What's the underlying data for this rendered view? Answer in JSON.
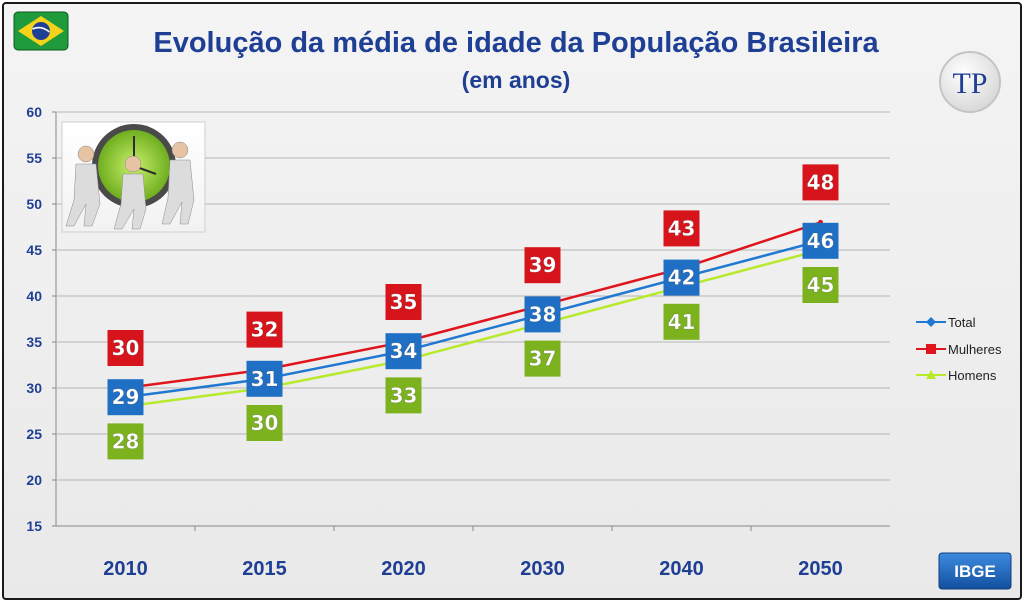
{
  "chart_data": {
    "type": "line",
    "title": "Evolução da média de idade da População Brasileira",
    "subtitle": "(em anos)",
    "categories": [
      "2010",
      "2015",
      "2020",
      "2030",
      "2040",
      "2050"
    ],
    "ylim": [
      15,
      60
    ],
    "yticks": [
      15,
      20,
      25,
      30,
      35,
      40,
      45,
      50,
      55,
      60
    ],
    "grid": true,
    "legend_position": "right",
    "series": [
      {
        "name": "Total",
        "values": [
          29,
          31,
          34,
          38,
          42,
          46
        ],
        "label_values": [
          "29",
          "31",
          "34",
          "38",
          "42",
          "46"
        ],
        "color": "#1f78d1",
        "box_color": "#1f6fc4",
        "marker": "diamond"
      },
      {
        "name": "Mulheres",
        "values": [
          30,
          32,
          35,
          39,
          43,
          48
        ],
        "label_values": [
          "30",
          "32",
          "35",
          "39",
          "43",
          "48"
        ],
        "color": "#e0141c",
        "box_color": "#d7141c",
        "marker": "square"
      },
      {
        "name": "Homens",
        "values": [
          28,
          30,
          33,
          37,
          41,
          45
        ],
        "label_values": [
          "28",
          "30",
          "33",
          "37",
          "41",
          "45"
        ],
        "color": "#b6ea2a",
        "box_color": "#7bb21e",
        "marker": "triangle"
      }
    ]
  },
  "badges": {
    "source": "IBGE",
    "logo": "TP"
  },
  "icons": {
    "flag": "brazil-flag-icon",
    "photo": "people-clock-photo",
    "logo": "tp-logo-icon"
  }
}
